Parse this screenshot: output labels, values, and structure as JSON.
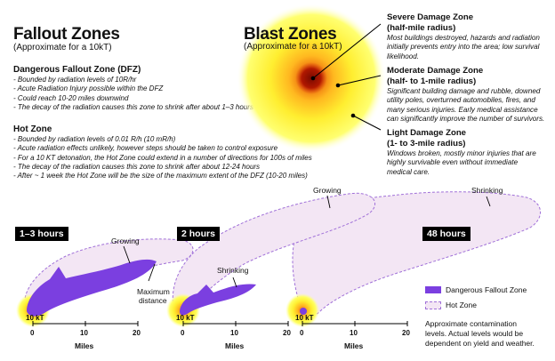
{
  "fallout": {
    "title": "Fallout Zones",
    "subtitle": "(Approximate for a 10kT)",
    "dfz": {
      "heading": "Dangerous Fallout Zone (DFZ)",
      "bullets": [
        "Bounded by radiation levels of 10R/hr",
        "Acute Radiation Injury possible within the DFZ",
        "Could reach 10-20 miles downwind",
        "The decay of the radiation causes this zone to shrink after about 1–3 hours"
      ]
    },
    "hot": {
      "heading": "Hot Zone",
      "bullets": [
        "Bounded by radiation levels of 0.01 R/h (10 mR/h)",
        "Acute radiation effects unlikely, however steps should be taken to control exposure",
        "For a 10 KT detonation, the Hot Zone could extend in a number of directions for 100s of miles",
        "The decay of the radiation causes this zone to shrink after about 12-24 hours",
        "After ~ 1 week the Hot Zone will be the size of the maximum extent of the DFZ (10-20 miles)"
      ]
    }
  },
  "blast": {
    "title": "Blast Zones",
    "subtitle": "(Approximate for a 10kT)",
    "severe": {
      "title1": "Severe Damage Zone",
      "title2": "(half-mile radius)",
      "desc": [
        "Most buildings destroyed, hazards and radiation",
        "initially prevents entry into the area; low survival",
        "likelihood."
      ]
    },
    "moderate": {
      "title1": "Moderate Damage Zone",
      "title2": "(half- to 1-mile radius)",
      "desc": [
        "Significant building damage and rubble, downed",
        "utility poles, overturned automobiles, fires, and",
        "many serious injuries. Early medical assistance",
        "can significantly improve the number of survivors."
      ]
    },
    "light": {
      "title1": "Light Damage Zone",
      "title2": "(1- to 3-mile radius)",
      "desc": [
        "Windows broken, mostly minor injuries that are",
        "highly survivable even without immediate",
        "medical care."
      ]
    }
  },
  "timeline": {
    "badges": [
      "1–3 hours",
      "2 hours",
      "48 hours"
    ],
    "annotations": {
      "growing1": "Growing",
      "growing2": "Growing",
      "shrinking_small": "Shrinking",
      "shrinking_large": "Shrinking",
      "max1": "Maximum",
      "max2": "distance"
    },
    "origin_label": "10 kT",
    "axis": {
      "ticks": [
        "0",
        "10",
        "20"
      ],
      "label": "Miles"
    }
  },
  "legend": {
    "dangerous": "Dangerous Fallout Zone",
    "hot": "Hot Zone",
    "note": [
      "Approximate contamination",
      "levels. Actual levels would be",
      "dependent on yield and weather."
    ]
  },
  "colors": {
    "dfz": "#7b3fe0",
    "hot_fill": "#f3e6f4",
    "hot_stroke": "#a070d8",
    "glow": "#ffff30"
  }
}
